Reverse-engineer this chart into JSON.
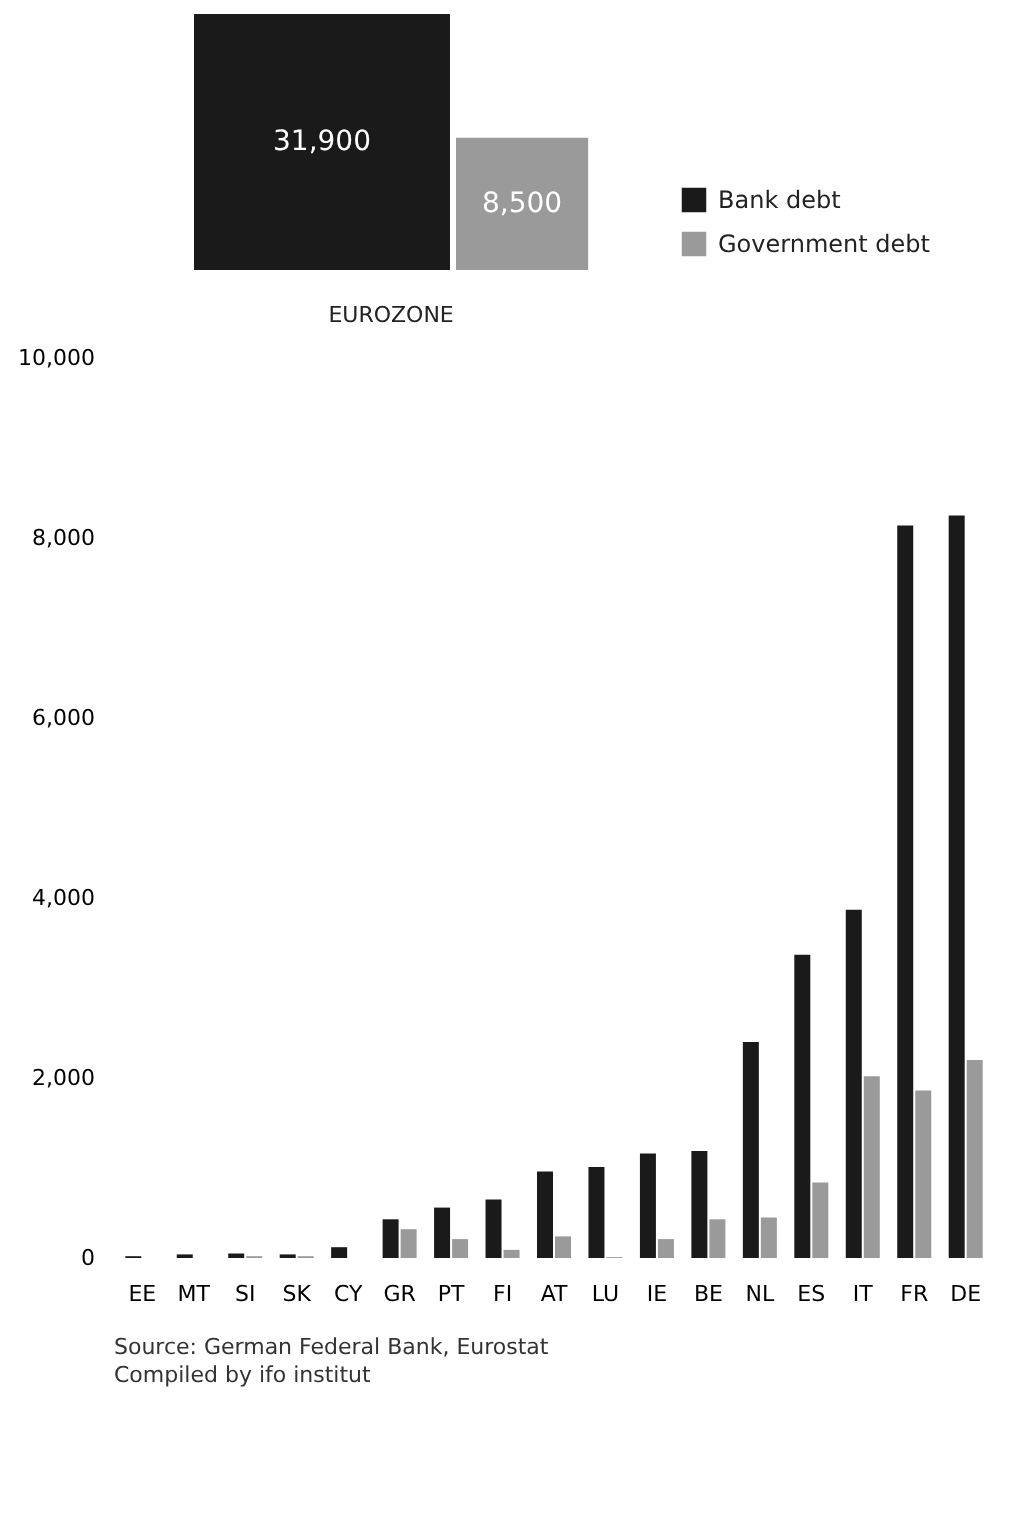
{
  "chart_data": [
    {
      "type": "other",
      "categories": [
        "EUROZONE"
      ],
      "series": [
        {
          "color": "#1a1a1a",
          "values": [
            31900
          ],
          "value_labels": [
            "31,900"
          ]
        },
        {
          "color": "#9a9a9a",
          "values": [
            8500
          ],
          "value_labels": [
            "8,500"
          ]
        }
      ]
    },
    {
      "type": "bar",
      "categories": [
        "EE",
        "MT",
        "SI",
        "SK",
        "CY",
        "GR",
        "PT",
        "FI",
        "AT",
        "LU",
        "IE",
        "BE",
        "NL",
        "ES",
        "IT",
        "FR",
        "DE"
      ],
      "ylim": [
        0,
        10000
      ],
      "yticks": [
        0,
        {
          "value": 2000,
          "label": "2,000"
        },
        {
          "value": 4000,
          "label": "4,000"
        },
        {
          "value": 6000,
          "label": "6,000"
        },
        {
          "value": 8000,
          "label": "8,000"
        },
        {
          "value": 10000,
          "label": "10,000"
        }
      ],
      "grid": false,
      "legend": "top right",
      "series": [
        {
          "name": "Bank debt",
          "color": "#1a1a1a",
          "values": [
            20,
            40,
            50,
            40,
            120,
            430,
            560,
            650,
            960,
            1010,
            1160,
            1190,
            2400,
            3370,
            3870,
            8140,
            8250
          ]
        },
        {
          "name": "Government debt",
          "color": "#9a9a9a",
          "values": [
            0,
            0,
            20,
            20,
            0,
            320,
            210,
            90,
            240,
            10,
            210,
            430,
            450,
            840,
            2020,
            1860,
            2200
          ]
        }
      ],
      "annotations": [
        "Source: German Federal Bank, Eurostat",
        "Compiled by ifo institut"
      ]
    }
  ]
}
